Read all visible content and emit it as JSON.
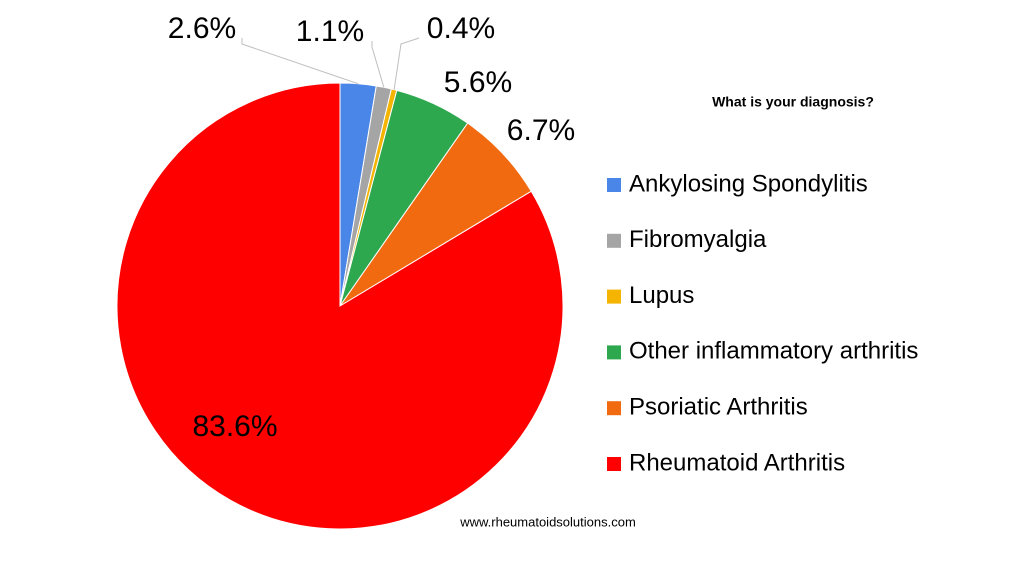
{
  "chart_data": {
    "type": "pie",
    "title": "What is your diagnosis?",
    "categories": [
      "Ankylosing Spondylitis",
      "Fibromyalgia",
      "Lupus",
      "Other inflammatory arthritis",
      "Psoriatic Arthritis",
      "Rheumatoid Arthritis"
    ],
    "values": [
      2.6,
      1.1,
      0.4,
      5.6,
      6.7,
      83.6
    ],
    "value_labels": [
      "2.6%",
      "1.1%",
      "0.4%",
      "5.6%",
      "6.7%",
      "83.6%"
    ],
    "colors": [
      "#4a86e8",
      "#a5a5a5",
      "#f4b400",
      "#2ea84f",
      "#f26a0f",
      "#ff0000"
    ],
    "legend": "right",
    "source": "www.rheumatoidsolutions.com"
  }
}
